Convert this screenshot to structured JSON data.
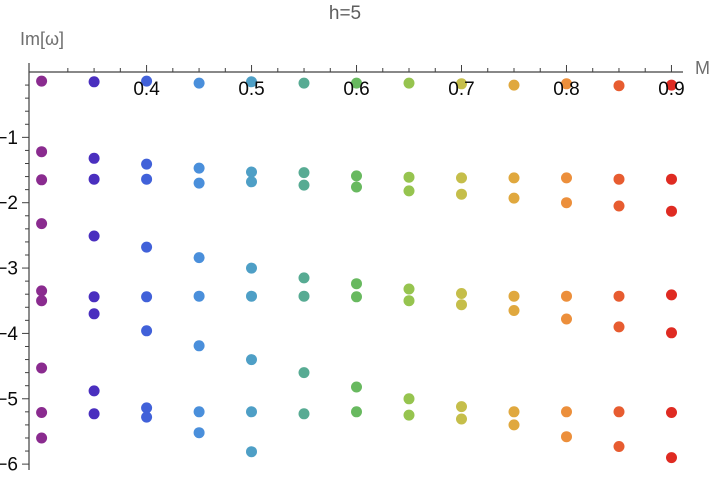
{
  "chart_data": {
    "type": "scatter",
    "title": "h=5",
    "xlabel": "M",
    "ylabel": "Im[ω]",
    "grid": false,
    "legend": "none",
    "xlim": [
      0.288,
      0.911
    ],
    "ylim": [
      -6.09,
      0.14
    ],
    "x_major_ticks": [
      {
        "value": 0.4,
        "label": "0.4"
      },
      {
        "value": 0.5,
        "label": "0.5"
      },
      {
        "value": 0.6,
        "label": "0.6"
      },
      {
        "value": 0.7,
        "label": "0.7"
      },
      {
        "value": 0.8,
        "label": "0.8"
      },
      {
        "value": 0.9,
        "label": "0.9"
      }
    ],
    "x_minor_ticks": {
      "start": 0.3,
      "end": 0.9,
      "step": 0.025
    },
    "y_major_ticks": [
      {
        "value": -1,
        "label": "−1"
      },
      {
        "value": -2,
        "label": "−2"
      },
      {
        "value": -3,
        "label": "−3"
      },
      {
        "value": -4,
        "label": "−4"
      },
      {
        "value": -5,
        "label": "−5"
      },
      {
        "value": -6,
        "label": "−6"
      }
    ],
    "y_minor_ticks": {
      "start": -0.2,
      "end": -6.0,
      "step": -0.2
    },
    "marker": {
      "shape": "circle",
      "radius_px": 5.5
    },
    "series": [
      {
        "name": "M=0.30",
        "M": 0.3,
        "color": "#8A2B8F",
        "im_values": [
          -0.14,
          -1.22,
          -1.65,
          -2.32,
          -3.35,
          -3.5,
          -4.53,
          -5.21,
          -5.6
        ]
      },
      {
        "name": "M=0.35",
        "M": 0.35,
        "color": "#4A2FBF",
        "im_values": [
          -0.15,
          -1.32,
          -1.64,
          -2.51,
          -3.44,
          -3.7,
          -4.88,
          -5.23
        ]
      },
      {
        "name": "M=0.40",
        "M": 0.4,
        "color": "#4161D9",
        "im_values": [
          -0.14,
          -1.41,
          -1.64,
          -2.68,
          -3.44,
          -3.96,
          -5.14,
          -5.28
        ]
      },
      {
        "name": "M=0.45",
        "M": 0.45,
        "color": "#4A8FDB",
        "im_values": [
          -0.17,
          -1.47,
          -1.7,
          -2.84,
          -3.43,
          -4.19,
          -5.2,
          -5.52
        ]
      },
      {
        "name": "M=0.50",
        "M": 0.5,
        "color": "#4E9FC6",
        "im_values": [
          -0.15,
          -1.53,
          -1.68,
          -3.0,
          -3.43,
          -4.4,
          -5.2,
          -5.81
        ]
      },
      {
        "name": "M=0.55",
        "M": 0.55,
        "color": "#57AB93",
        "im_values": [
          -0.17,
          -1.54,
          -1.73,
          -3.15,
          -3.43,
          -4.6,
          -5.23
        ]
      },
      {
        "name": "M=0.60",
        "M": 0.6,
        "color": "#68B95F",
        "im_values": [
          -0.17,
          -1.59,
          -1.76,
          -3.24,
          -3.44,
          -4.82,
          -5.2
        ]
      },
      {
        "name": "M=0.65",
        "M": 0.65,
        "color": "#96C44F",
        "im_values": [
          -0.17,
          -1.61,
          -1.82,
          -3.32,
          -3.5,
          -5.0,
          -5.25
        ]
      },
      {
        "name": "M=0.70",
        "M": 0.7,
        "color": "#C5BE4A",
        "im_values": [
          -0.18,
          -1.62,
          -1.87,
          -3.39,
          -3.56,
          -5.12,
          -5.31
        ]
      },
      {
        "name": "M=0.75",
        "M": 0.75,
        "color": "#E0A83E",
        "im_values": [
          -0.2,
          -1.62,
          -1.93,
          -3.43,
          -3.65,
          -5.2,
          -5.4
        ]
      },
      {
        "name": "M=0.80",
        "M": 0.8,
        "color": "#EC8F3B",
        "im_values": [
          -0.18,
          -1.62,
          -2.0,
          -3.43,
          -3.78,
          -5.2,
          -5.58
        ]
      },
      {
        "name": "M=0.85",
        "M": 0.85,
        "color": "#E75C30",
        "im_values": [
          -0.21,
          -1.64,
          -2.05,
          -3.43,
          -3.9,
          -5.2,
          -5.73
        ]
      },
      {
        "name": "M=0.90",
        "M": 0.9,
        "color": "#DF2B22",
        "im_values": [
          -0.2,
          -1.64,
          -2.13,
          -3.41,
          -3.99,
          -5.21,
          -5.9
        ]
      }
    ]
  },
  "style_colors": {
    "axis_line": "#404040",
    "tick_label": "#0a0a0a",
    "title_text": "#5e5e5e",
    "axis_label_text": "#6e6e6e"
  }
}
